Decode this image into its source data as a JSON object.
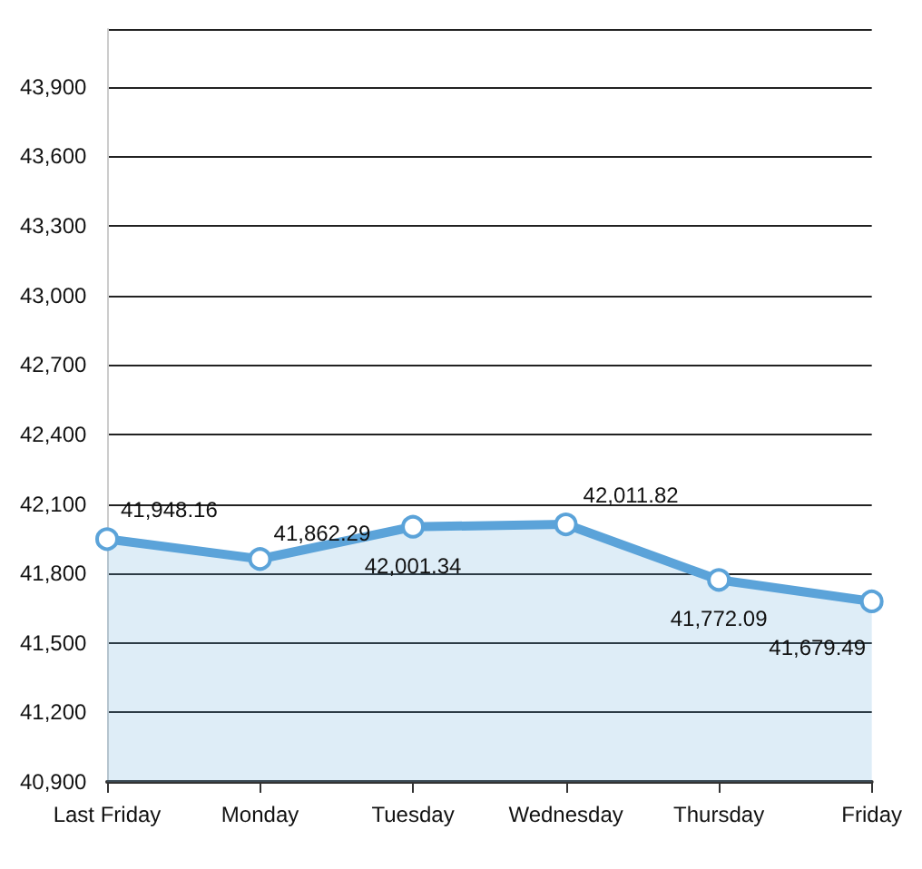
{
  "chart_data": {
    "type": "area",
    "categories": [
      "Last Friday",
      "Monday",
      "Tuesday",
      "Wednesday",
      "Thursday",
      "Friday"
    ],
    "series": [
      {
        "color": "#5ba3d9",
        "values": [
          41948.16,
          41862.29,
          42001.34,
          42011.82,
          41772.09,
          41679.49
        ],
        "value_labels": [
          "41,948.16",
          "41,862.29",
          "42,001.34",
          "42,011.82",
          "41,772.09",
          "41,679.49"
        ]
      }
    ],
    "ylim": [
      40900,
      44150
    ],
    "yticks": [
      {
        "value": 40900,
        "label": "40,900"
      },
      {
        "value": 41200,
        "label": "41,200"
      },
      {
        "value": 41500,
        "label": "41,500"
      },
      {
        "value": 41800,
        "label": "41,800"
      },
      {
        "value": 42100,
        "label": "42,100"
      },
      {
        "value": 42400,
        "label": "42,400"
      },
      {
        "value": 42700,
        "label": "42,700"
      },
      {
        "value": 43000,
        "label": "43,000"
      },
      {
        "value": 43300,
        "label": "43,300"
      },
      {
        "value": 43600,
        "label": "43,600"
      },
      {
        "value": 43900,
        "label": "43,900"
      },
      {
        "value": 44150,
        "label": null
      }
    ],
    "grid": "y",
    "marker": "circle",
    "line_style": "solid"
  }
}
